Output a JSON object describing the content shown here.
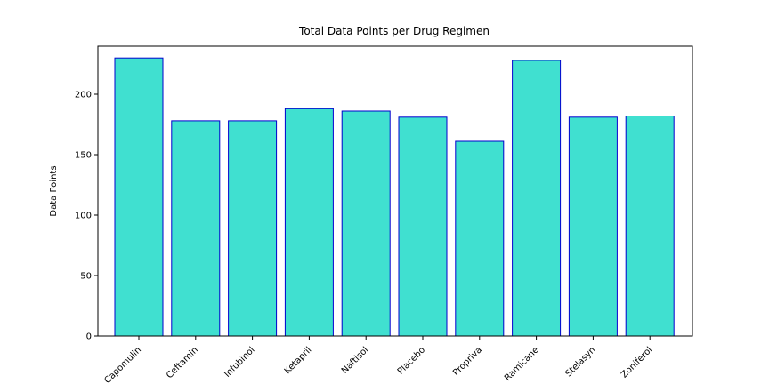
{
  "chart_data": {
    "type": "bar",
    "title": "Total Data Points per Drug Regimen",
    "xlabel": "",
    "ylabel": "Data Points",
    "categories": [
      "Capomulin",
      "Ceftamin",
      "Infubinol",
      "Ketapril",
      "Naftisol",
      "Placebo",
      "Propriva",
      "Ramicane",
      "Stelasyn",
      "Zoniferol"
    ],
    "values": [
      230,
      178,
      178,
      188,
      186,
      181,
      161,
      228,
      181,
      182
    ],
    "ylim": [
      0,
      240
    ],
    "yticks": [
      0,
      50,
      100,
      150,
      200
    ],
    "grid": false,
    "legend": "none",
    "colors": {
      "bar_fill": "#40e0d0",
      "bar_edge": "#0000cd",
      "axis": "#000000"
    }
  }
}
